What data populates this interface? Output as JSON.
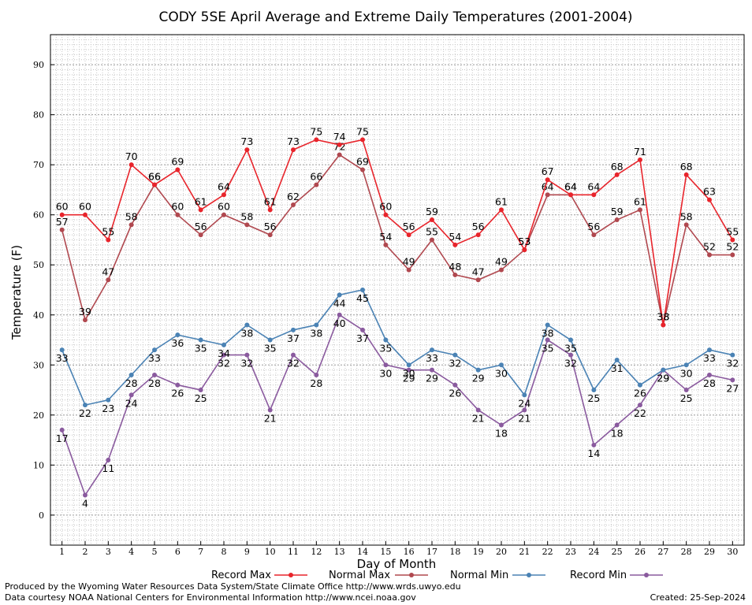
{
  "chart_data": {
    "type": "line",
    "title": "CODY 5SE April Average and Extreme Daily Temperatures (2001-2004)",
    "xlabel": "Day of Month",
    "ylabel": "Temperature (F)",
    "x": [
      1,
      2,
      3,
      4,
      5,
      6,
      7,
      8,
      9,
      10,
      11,
      12,
      13,
      14,
      15,
      16,
      17,
      18,
      19,
      20,
      21,
      22,
      23,
      24,
      25,
      26,
      27,
      28,
      29,
      30
    ],
    "xlim": [
      0.5,
      30.5
    ],
    "ylim": [
      -6,
      96
    ],
    "yticks": [
      0,
      10,
      20,
      30,
      40,
      50,
      60,
      70,
      80,
      90
    ],
    "grid": true,
    "legend": "bottom",
    "series": [
      {
        "name": "Record Max",
        "color": "#e8242b",
        "values": [
          60,
          60,
          55,
          70,
          66,
          69,
          61,
          64,
          73,
          61,
          73,
          75,
          74,
          75,
          60,
          56,
          59,
          54,
          56,
          61,
          53,
          67,
          64,
          64,
          68,
          71,
          38,
          68,
          63,
          55
        ]
      },
      {
        "name": "Normal Max",
        "color": "#b0484f",
        "values": [
          57,
          39,
          47,
          58,
          66,
          60,
          56,
          60,
          58,
          56,
          62,
          66,
          72,
          69,
          54,
          49,
          55,
          48,
          47,
          49,
          53,
          64,
          64,
          56,
          59,
          61,
          38,
          58,
          52,
          52
        ]
      },
      {
        "name": "Normal Min",
        "color": "#4a82b4",
        "values": [
          33,
          22,
          23,
          28,
          33,
          36,
          35,
          34,
          38,
          35,
          37,
          38,
          44,
          45,
          35,
          30,
          33,
          32,
          29,
          30,
          24,
          38,
          35,
          25,
          31,
          26,
          29,
          30,
          33,
          32
        ]
      },
      {
        "name": "Record Min",
        "color": "#8a5a9e",
        "values": [
          17,
          4,
          11,
          24,
          28,
          26,
          25,
          32,
          32,
          21,
          32,
          28,
          40,
          37,
          30,
          29,
          29,
          26,
          21,
          18,
          21,
          35,
          32,
          14,
          18,
          22,
          29,
          25,
          28,
          27
        ]
      }
    ]
  },
  "footer": {
    "credit_line1": "Produced by the Wyoming Water Resources Data System/State Climate Office http://www.wrds.uwyo.edu",
    "credit_line2": "Data courtesy NOAA National Centers for Environmental Information http://www.ncei.noaa.gov",
    "created": "Created:  25-Sep-2024"
  }
}
